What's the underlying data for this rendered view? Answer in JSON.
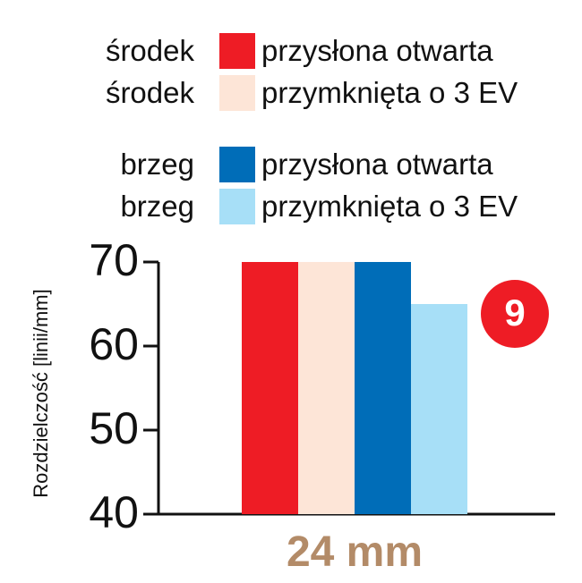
{
  "chart_data": {
    "type": "bar",
    "title": "",
    "xlabel": "",
    "ylabel": "Rozdzielczość  [linii/mm]",
    "categories": [
      "24 mm"
    ],
    "ylim": [
      40,
      70
    ],
    "yticks": [
      40,
      50,
      60,
      70
    ],
    "grid": false,
    "legend_placement": "top",
    "series": [
      {
        "legend_prefix": "środek",
        "name": "przysłona otwarta",
        "color": "#ee1c25",
        "values": [
          70
        ]
      },
      {
        "legend_prefix": "środek",
        "name": "przymknięta o 3 EV",
        "color": "#fde5d7",
        "values": [
          70
        ]
      },
      {
        "legend_prefix": "brzeg",
        "name": "przysłona otwarta",
        "color": "#006db8",
        "values": [
          70
        ]
      },
      {
        "legend_prefix": "brzeg",
        "name": "przymknięta o 3 EV",
        "color": "#a7dff7",
        "values": [
          65
        ]
      }
    ],
    "badge": {
      "text": "9",
      "color": "#ee1c25"
    },
    "category_label_color": "#b38b68"
  }
}
